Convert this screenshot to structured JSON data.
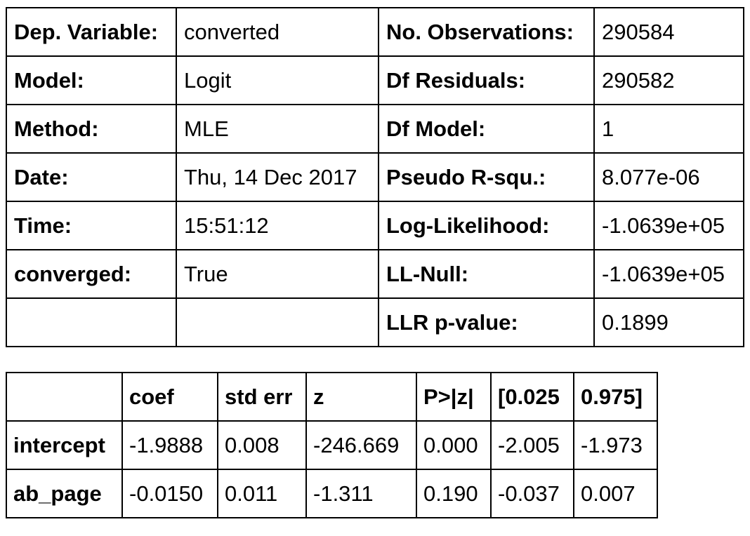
{
  "summary": {
    "rows": [
      {
        "left_label": "Dep. Variable:",
        "left_value": "converted",
        "right_label": "No. Observations:",
        "right_value": "290584"
      },
      {
        "left_label": "Model:",
        "left_value": "Logit",
        "right_label": "Df Residuals:",
        "right_value": "290582"
      },
      {
        "left_label": "Method:",
        "left_value": "MLE",
        "right_label": "Df Model:",
        "right_value": "1"
      },
      {
        "left_label": "Date:",
        "left_value": "Thu, 14 Dec 2017",
        "right_label": "Pseudo R-squ.:",
        "right_value": "8.077e-06"
      },
      {
        "left_label": "Time:",
        "left_value": "15:51:12",
        "right_label": "Log-Likelihood:",
        "right_value": "-1.0639e+05"
      },
      {
        "left_label": "converged:",
        "left_value": "True",
        "right_label": "LL-Null:",
        "right_value": "-1.0639e+05"
      },
      {
        "left_label": "",
        "left_value": "",
        "right_label": "LLR p-value:",
        "right_value": "0.1899"
      }
    ]
  },
  "coefficients": {
    "headers": [
      "",
      "coef",
      "std err",
      "z",
      "P>|z|",
      "[0.025",
      "0.975]"
    ],
    "rows": [
      {
        "name": "intercept",
        "values": [
          "-1.9888",
          "0.008",
          "-246.669",
          "0.000",
          "-2.005",
          "-1.973"
        ]
      },
      {
        "name": "ab_page",
        "values": [
          "-0.0150",
          "0.011",
          "-1.311",
          "0.190",
          "-0.037",
          "0.007"
        ]
      }
    ]
  }
}
